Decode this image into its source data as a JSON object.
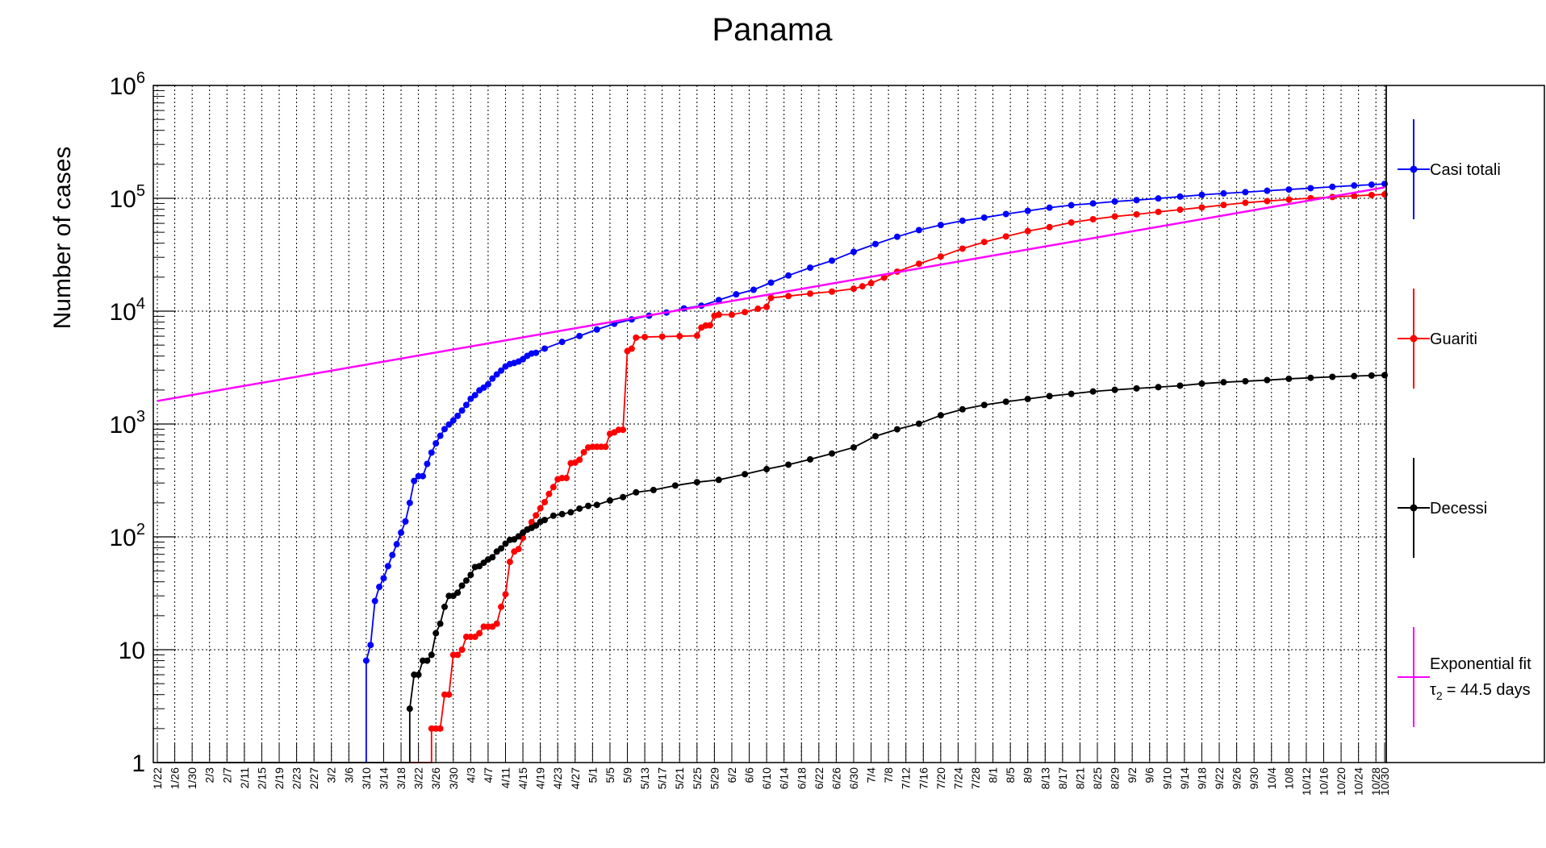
{
  "chart_data": {
    "type": "line",
    "title": "Panama",
    "xlabel": "",
    "ylabel": "Number of cases",
    "yscale": "log",
    "ylim": [
      1,
      1000000
    ],
    "grid": true,
    "legend_position": "right",
    "y_ticks": [
      {
        "value": 1,
        "base": "1",
        "exp": ""
      },
      {
        "value": 10,
        "base": "10",
        "exp": ""
      },
      {
        "value": 100,
        "base": "10",
        "exp": "2"
      },
      {
        "value": 1000,
        "base": "10",
        "exp": "3"
      },
      {
        "value": 10000,
        "base": "10",
        "exp": "4"
      },
      {
        "value": 100000,
        "base": "10",
        "exp": "5"
      },
      {
        "value": 1000000,
        "base": "10",
        "exp": "6"
      }
    ],
    "x_start_date": "1/22",
    "x_end_date": "10/30",
    "x_tick_labels": [
      "1/22",
      "1/26",
      "1/30",
      "2/3",
      "2/7",
      "2/11",
      "2/15",
      "2/19",
      "2/23",
      "2/27",
      "3/2",
      "3/6",
      "3/10",
      "3/14",
      "3/18",
      "3/22",
      "3/26",
      "3/30",
      "4/3",
      "4/7",
      "4/11",
      "4/15",
      "4/19",
      "4/23",
      "4/27",
      "5/1",
      "5/5",
      "5/9",
      "5/13",
      "5/17",
      "5/21",
      "5/25",
      "5/29",
      "6/2",
      "6/6",
      "6/10",
      "6/14",
      "6/18",
      "6/22",
      "6/26",
      "6/30",
      "7/4",
      "7/8",
      "7/12",
      "7/16",
      "7/20",
      "7/24",
      "7/28",
      "8/1",
      "8/5",
      "8/9",
      "8/13",
      "8/17",
      "8/21",
      "8/25",
      "8/29",
      "9/2",
      "9/6",
      "9/10",
      "9/14",
      "9/18",
      "9/22",
      "9/26",
      "9/30",
      "10/4",
      "10/8",
      "10/12",
      "10/16",
      "10/20",
      "10/24",
      "10/28",
      "10/30"
    ],
    "series": [
      {
        "name": "Casi totali",
        "color": "#0000ff",
        "points": [
          [
            "3/10",
            8
          ],
          [
            "3/11",
            11
          ],
          [
            "3/12",
            27
          ],
          [
            "3/13",
            36
          ],
          [
            "3/14",
            43
          ],
          [
            "3/15",
            55
          ],
          [
            "3/16",
            69
          ],
          [
            "3/17",
            86
          ],
          [
            "3/18",
            109
          ],
          [
            "3/19",
            137
          ],
          [
            "3/20",
            200
          ],
          [
            "3/21",
            313
          ],
          [
            "3/22",
            345
          ],
          [
            "3/23",
            345
          ],
          [
            "3/24",
            443
          ],
          [
            "3/25",
            558
          ],
          [
            "3/26",
            674
          ],
          [
            "3/27",
            786
          ],
          [
            "3/28",
            901
          ],
          [
            "3/29",
            989
          ],
          [
            "3/30",
            1075
          ],
          [
            "3/31",
            1181
          ],
          [
            "4/1",
            1317
          ],
          [
            "4/2",
            1475
          ],
          [
            "4/3",
            1673
          ],
          [
            "4/4",
            1801
          ],
          [
            "4/5",
            1988
          ],
          [
            "4/6",
            2100
          ],
          [
            "4/7",
            2249
          ],
          [
            "4/8",
            2528
          ],
          [
            "4/9",
            2752
          ],
          [
            "4/10",
            2974
          ],
          [
            "4/11",
            3234
          ],
          [
            "4/12",
            3400
          ],
          [
            "4/13",
            3472
          ],
          [
            "4/14",
            3574
          ],
          [
            "4/15",
            3751
          ],
          [
            "4/16",
            4016
          ],
          [
            "4/17",
            4210
          ],
          [
            "4/18",
            4273
          ],
          [
            "4/20",
            4658
          ],
          [
            "4/24",
            5338
          ],
          [
            "4/28",
            6021
          ],
          [
            "5/2",
            6878
          ],
          [
            "5/6",
            7731
          ],
          [
            "5/10",
            8448
          ],
          [
            "5/14",
            9118
          ],
          [
            "5/18",
            9726
          ],
          [
            "5/22",
            10577
          ],
          [
            "5/26",
            11183
          ],
          [
            "5/30",
            12531
          ],
          [
            "6/3",
            14095
          ],
          [
            "6/7",
            15463
          ],
          [
            "6/11",
            17889
          ],
          [
            "6/15",
            20686
          ],
          [
            "6/20",
            24274
          ],
          [
            "6/25",
            28030
          ],
          [
            "6/30",
            33550
          ],
          [
            "7/5",
            39334
          ],
          [
            "7/10",
            45633
          ],
          [
            "7/15",
            52261
          ],
          [
            "7/20",
            57993
          ],
          [
            "7/25",
            63269
          ],
          [
            "7/30",
            67453
          ],
          [
            "8/4",
            72560
          ],
          [
            "8/9",
            77377
          ],
          [
            "8/14",
            82543
          ],
          [
            "8/19",
            86900
          ],
          [
            "8/24",
            90089
          ],
          [
            "8/29",
            93669
          ],
          [
            "9/3",
            96305
          ],
          [
            "9/8",
            99715
          ],
          [
            "9/13",
            103465
          ],
          [
            "9/18",
            107284
          ],
          [
            "9/23",
            110555
          ],
          [
            "9/28",
            113342
          ],
          [
            "10/3",
            116602
          ],
          [
            "10/8",
            119666
          ],
          [
            "10/13",
            122874
          ],
          [
            "10/18",
            126345
          ],
          [
            "10/23",
            129719
          ],
          [
            "10/27",
            132045
          ],
          [
            "10/30",
            134235
          ]
        ]
      },
      {
        "name": "Guariti",
        "color": "#ff0000",
        "points": [
          [
            "3/25",
            2
          ],
          [
            "3/26",
            2
          ],
          [
            "3/27",
            2
          ],
          [
            "3/28",
            4
          ],
          [
            "3/29",
            4
          ],
          [
            "3/30",
            9
          ],
          [
            "3/31",
            9
          ],
          [
            "4/1",
            10
          ],
          [
            "4/2",
            13
          ],
          [
            "4/3",
            13
          ],
          [
            "4/4",
            13
          ],
          [
            "4/5",
            14
          ],
          [
            "4/6",
            16
          ],
          [
            "4/7",
            16
          ],
          [
            "4/8",
            16
          ],
          [
            "4/9",
            17
          ],
          [
            "4/10",
            24
          ],
          [
            "4/11",
            31
          ],
          [
            "4/12",
            60
          ],
          [
            "4/13",
            74
          ],
          [
            "4/14",
            78
          ],
          [
            "4/15",
            98
          ],
          [
            "4/16",
            116
          ],
          [
            "4/17",
            135
          ],
          [
            "4/18",
            155
          ],
          [
            "4/19",
            179
          ],
          [
            "4/20",
            203
          ],
          [
            "4/21",
            240
          ],
          [
            "4/22",
            276
          ],
          [
            "4/23",
            324
          ],
          [
            "4/24",
            332
          ],
          [
            "4/25",
            332
          ],
          [
            "4/26",
            449
          ],
          [
            "4/27",
            455
          ],
          [
            "4/28",
            482
          ],
          [
            "4/29",
            562
          ],
          [
            "4/30",
            619
          ],
          [
            "5/1",
            628
          ],
          [
            "5/2",
            628
          ],
          [
            "5/3",
            628
          ],
          [
            "5/4",
            628
          ],
          [
            "5/5",
            819
          ],
          [
            "5/6",
            843
          ],
          [
            "5/7",
            888
          ],
          [
            "5/8",
            888
          ],
          [
            "5/9",
            4429
          ],
          [
            "5/10",
            4650
          ],
          [
            "5/11",
            5829
          ],
          [
            "5/13",
            5900
          ],
          [
            "5/17",
            5950
          ],
          [
            "5/21",
            6000
          ],
          [
            "5/25",
            6050
          ],
          [
            "5/26",
            7150
          ],
          [
            "5/27",
            7450
          ],
          [
            "5/28",
            7500
          ],
          [
            "5/29",
            9100
          ],
          [
            "5/30",
            9300
          ],
          [
            "6/2",
            9300
          ],
          [
            "6/5",
            9800
          ],
          [
            "6/8",
            10500
          ],
          [
            "6/10",
            10900
          ],
          [
            "6/11",
            13100
          ],
          [
            "6/15",
            13600
          ],
          [
            "6/20",
            14300
          ],
          [
            "6/25",
            14900
          ],
          [
            "6/30",
            15800
          ],
          [
            "7/2",
            16600
          ],
          [
            "7/4",
            17700
          ],
          [
            "7/7",
            19800
          ],
          [
            "7/10",
            22400
          ],
          [
            "7/15",
            26300
          ],
          [
            "7/20",
            30500
          ],
          [
            "7/25",
            35800
          ],
          [
            "7/30",
            41000
          ],
          [
            "8/4",
            45900
          ],
          [
            "8/9",
            51200
          ],
          [
            "8/14",
            55500
          ],
          [
            "8/19",
            61000
          ],
          [
            "8/24",
            65200
          ],
          [
            "8/29",
            69000
          ],
          [
            "9/3",
            72000
          ],
          [
            "9/8",
            75800
          ],
          [
            "9/13",
            79300
          ],
          [
            "9/18",
            83000
          ],
          [
            "9/23",
            87300
          ],
          [
            "9/28",
            91300
          ],
          [
            "10/3",
            94500
          ],
          [
            "10/8",
            97500
          ],
          [
            "10/13",
            100200
          ],
          [
            "10/18",
            102700
          ],
          [
            "10/23",
            105000
          ],
          [
            "10/27",
            106900
          ],
          [
            "10/30",
            108300
          ]
        ]
      },
      {
        "name": "Decessi",
        "color": "#000000",
        "points": [
          [
            "3/20",
            3
          ],
          [
            "3/21",
            6
          ],
          [
            "3/22",
            6
          ],
          [
            "3/23",
            8
          ],
          [
            "3/24",
            8
          ],
          [
            "3/25",
            9
          ],
          [
            "3/26",
            14
          ],
          [
            "3/27",
            17
          ],
          [
            "3/28",
            24
          ],
          [
            "3/29",
            30
          ],
          [
            "3/30",
            30
          ],
          [
            "3/31",
            32
          ],
          [
            "4/1",
            37
          ],
          [
            "4/2",
            41
          ],
          [
            "4/3",
            46
          ],
          [
            "4/4",
            54
          ],
          [
            "4/5",
            55
          ],
          [
            "4/6",
            59
          ],
          [
            "4/7",
            63
          ],
          [
            "4/8",
            66
          ],
          [
            "4/9",
            74
          ],
          [
            "4/10",
            79
          ],
          [
            "4/11",
            87
          ],
          [
            "4/12",
            94
          ],
          [
            "4/13",
            95
          ],
          [
            "4/14",
            101
          ],
          [
            "4/15",
            109
          ],
          [
            "4/16",
            116
          ],
          [
            "4/17",
            120
          ],
          [
            "4/18",
            126
          ],
          [
            "4/19",
            136
          ],
          [
            "4/20",
            141
          ],
          [
            "4/22",
            154
          ],
          [
            "4/24",
            159
          ],
          [
            "4/26",
            165
          ],
          [
            "4/28",
            178
          ],
          [
            "4/30",
            188
          ],
          [
            "5/2",
            192
          ],
          [
            "5/5",
            210
          ],
          [
            "5/8",
            225
          ],
          [
            "5/11",
            248
          ],
          [
            "5/15",
            260
          ],
          [
            "5/20",
            285
          ],
          [
            "5/25",
            305
          ],
          [
            "5/30",
            320
          ],
          [
            "6/5",
            359
          ],
          [
            "6/10",
            398
          ],
          [
            "6/15",
            436
          ],
          [
            "6/20",
            486
          ],
          [
            "6/25",
            548
          ],
          [
            "6/30",
            620
          ],
          [
            "7/5",
            780
          ],
          [
            "7/10",
            897
          ],
          [
            "7/15",
            1006
          ],
          [
            "7/20",
            1194
          ],
          [
            "7/25",
            1349
          ],
          [
            "7/30",
            1475
          ],
          [
            "8/4",
            1575
          ],
          [
            "8/9",
            1668
          ],
          [
            "8/14",
            1767
          ],
          [
            "8/19",
            1849
          ],
          [
            "8/24",
            1942
          ],
          [
            "8/29",
            2008
          ],
          [
            "9/3",
            2067
          ],
          [
            "9/8",
            2122
          ],
          [
            "9/13",
            2185
          ],
          [
            "9/18",
            2278
          ],
          [
            "9/23",
            2345
          ],
          [
            "9/28",
            2393
          ],
          [
            "10/3",
            2449
          ],
          [
            "10/8",
            2515
          ],
          [
            "10/13",
            2566
          ],
          [
            "10/18",
            2617
          ],
          [
            "10/23",
            2660
          ],
          [
            "10/27",
            2688
          ],
          [
            "10/30",
            2705
          ]
        ]
      },
      {
        "name": "Exponential fit",
        "color": "#ff00ff",
        "annotation_symbol": "τ",
        "annotation_subscript": "2",
        "annotation_value": "= 44.5 days",
        "points": [
          [
            "1/22",
            1600
          ],
          [
            "10/30",
            125000
          ]
        ]
      }
    ]
  }
}
